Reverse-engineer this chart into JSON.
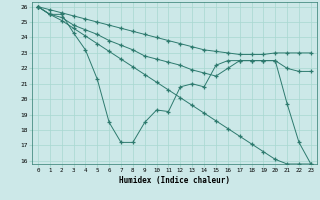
{
  "xlabel": "Humidex (Indice chaleur)",
  "bg_color": "#cce8e8",
  "line_color": "#2d7a6e",
  "grid_color": "#a8d8d0",
  "xlim": [
    -0.5,
    23.5
  ],
  "ylim": [
    15.8,
    26.3
  ],
  "yticks": [
    16,
    17,
    18,
    19,
    20,
    21,
    22,
    23,
    24,
    25,
    26
  ],
  "xticks": [
    0,
    1,
    2,
    3,
    4,
    5,
    6,
    7,
    8,
    9,
    10,
    11,
    12,
    13,
    14,
    15,
    16,
    17,
    18,
    19,
    20,
    21,
    22,
    23
  ],
  "series": [
    {
      "x": [
        0,
        1,
        2,
        3,
        4,
        5,
        6,
        7,
        8,
        9,
        10,
        11,
        12,
        13,
        14,
        15,
        16,
        17,
        18,
        19,
        20,
        21,
        22,
        23
      ],
      "y": [
        26.0,
        25.8,
        25.6,
        25.4,
        25.2,
        25.0,
        24.8,
        24.6,
        24.4,
        24.2,
        24.0,
        23.8,
        23.6,
        23.4,
        23.2,
        23.1,
        23.0,
        22.9,
        22.9,
        22.9,
        23.0,
        23.0,
        23.0,
        23.0
      ]
    },
    {
      "x": [
        0,
        1,
        2,
        3,
        4,
        5,
        6,
        7,
        8,
        9,
        10,
        11,
        12,
        13,
        14,
        15,
        16,
        17,
        18,
        19,
        20,
        21,
        22,
        23
      ],
      "y": [
        26.0,
        25.5,
        25.3,
        24.8,
        24.5,
        24.2,
        23.8,
        23.5,
        23.2,
        22.8,
        22.6,
        22.4,
        22.2,
        21.9,
        21.7,
        21.5,
        22.0,
        22.5,
        22.5,
        22.5,
        22.5,
        22.0,
        21.8,
        21.8
      ]
    },
    {
      "x": [
        0,
        1,
        2,
        3,
        4,
        5,
        6,
        7,
        8,
        9,
        10,
        11,
        12,
        13,
        14,
        15,
        16,
        17,
        18,
        19,
        20,
        21,
        22,
        23
      ],
      "y": [
        26.0,
        25.5,
        25.5,
        24.3,
        23.2,
        21.3,
        18.5,
        17.2,
        17.2,
        18.5,
        19.3,
        19.2,
        20.8,
        21.0,
        20.8,
        22.2,
        22.5,
        22.5,
        22.5,
        22.5,
        22.5,
        19.7,
        17.2,
        15.8
      ]
    },
    {
      "x": [
        0,
        1,
        2,
        3,
        4,
        5,
        6,
        7,
        8,
        9,
        10,
        11,
        12,
        13,
        14,
        15,
        16,
        17,
        18,
        19,
        20,
        21,
        22,
        23
      ],
      "y": [
        26.0,
        25.5,
        25.1,
        24.6,
        24.1,
        23.6,
        23.1,
        22.6,
        22.1,
        21.6,
        21.1,
        20.6,
        20.1,
        19.6,
        19.1,
        18.6,
        18.1,
        17.6,
        17.1,
        16.6,
        16.1,
        15.8,
        15.8,
        15.8
      ]
    }
  ]
}
